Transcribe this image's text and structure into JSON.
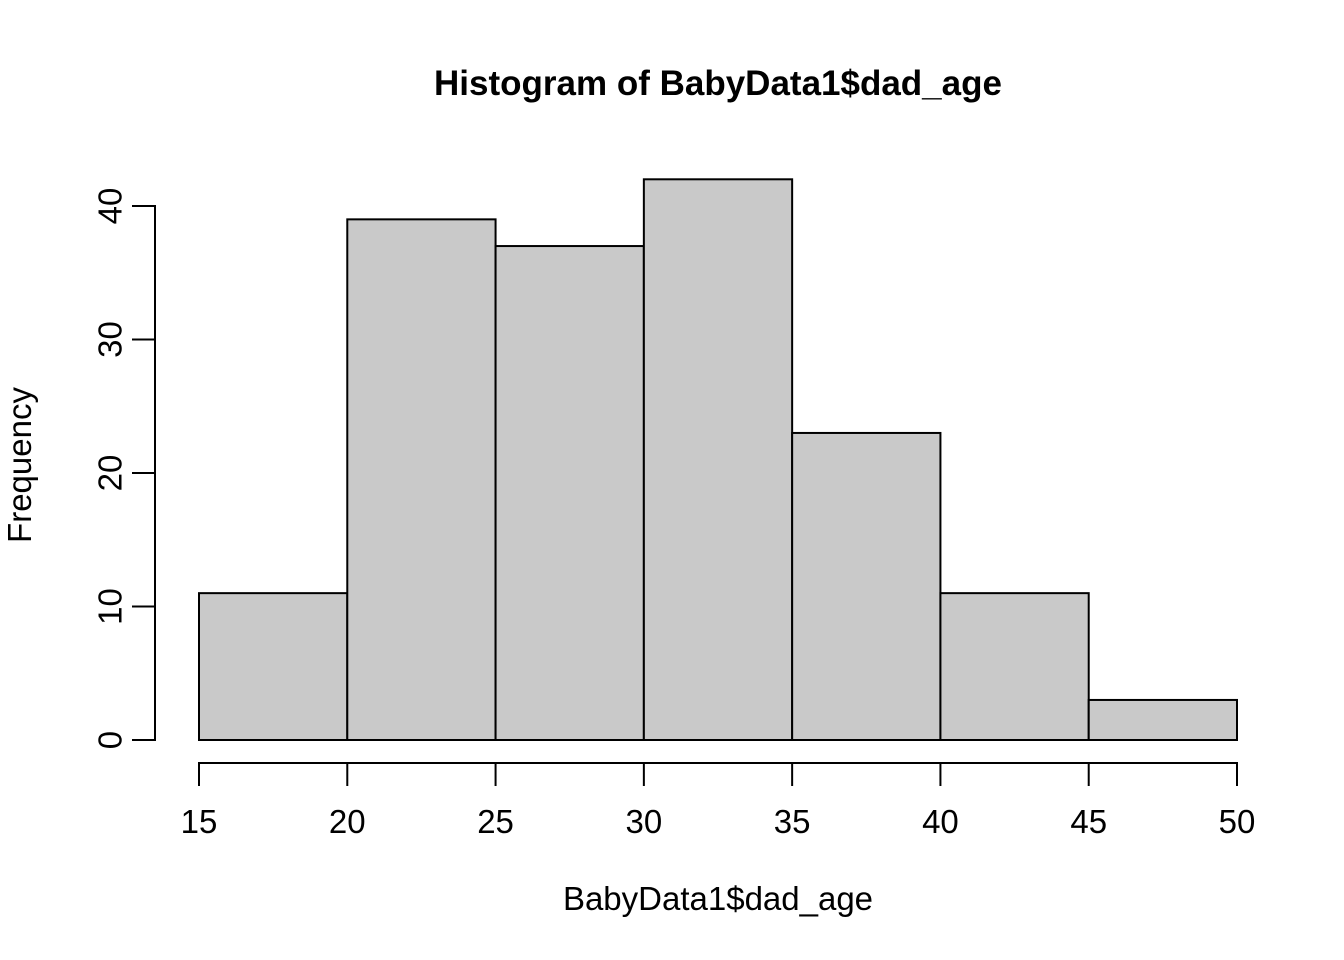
{
  "chart_data": {
    "type": "bar",
    "subtype": "histogram",
    "title": "Histogram of BabyData1$dad_age",
    "xlabel": "BabyData1$dad_age",
    "ylabel": "Frequency",
    "bin_edges": [
      15,
      20,
      25,
      30,
      35,
      40,
      45,
      50
    ],
    "categories": [
      "15-20",
      "20-25",
      "25-30",
      "30-35",
      "35-40",
      "40-45",
      "45-50"
    ],
    "values": [
      11,
      39,
      37,
      42,
      23,
      11,
      3
    ],
    "x_ticks": [
      "15",
      "20",
      "25",
      "30",
      "35",
      "40",
      "45",
      "50"
    ],
    "y_ticks": [
      "0",
      "10",
      "20",
      "30",
      "40"
    ],
    "xlim": [
      15,
      50
    ],
    "ylim": [
      0,
      40
    ],
    "grid": false,
    "legend": false,
    "colors": {
      "bar_fill": "#c9c9c9",
      "bar_stroke": "#000000",
      "axis": "#000000",
      "text": "#000000",
      "background": "#ffffff"
    }
  }
}
